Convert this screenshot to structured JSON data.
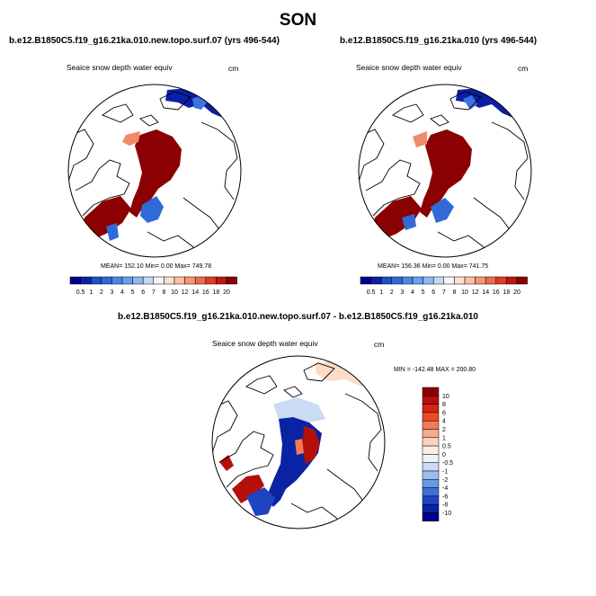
{
  "page": {
    "season": "SON"
  },
  "panels": {
    "left": {
      "title": "b.e12.B1850C5.f19_g16.21ka.010.new.topo.surf.07 (yrs 496-544)",
      "variable": "Seaice snow depth water equiv",
      "units": "cm",
      "stats": "MEAN= 152.10  Min=   0.00  Max= 749.78"
    },
    "right": {
      "title": "b.e12.B1850C5.f19_g16.21ka.010 (yrs 496-544)",
      "variable": "Seaice snow depth water equiv",
      "units": "cm",
      "stats": "MEAN= 156.36  Min=   0.00  Max= 741.75"
    },
    "diff": {
      "title": "b.e12.B1850C5.f19_g16.21ka.010.new.topo.surf.07 - b.e12.B1850C5.f19_g16.21ka.010",
      "variable": "Seaice snow depth water equiv",
      "units": "cm",
      "minmax": "MIN = -142.48  MAX = 200.80"
    }
  },
  "colorbars": {
    "absolute": {
      "labels": [
        "0.5",
        "1",
        "2",
        "3",
        "4",
        "5",
        "6",
        "7",
        "8",
        "10",
        "12",
        "14",
        "16",
        "18",
        "20"
      ],
      "colors": [
        "#00008f",
        "#0a1fa8",
        "#1f4fc6",
        "#2f68d8",
        "#4a86e8",
        "#6a9eee",
        "#8fb8f3",
        "#c4d8f7",
        "#f5f5f5",
        "#fde0cf",
        "#fbbfa3",
        "#f79473",
        "#ef6a4a",
        "#df3a26",
        "#c01510",
        "#8b0000"
      ]
    },
    "difference": {
      "labels": [
        "10",
        "8",
        "6",
        "4",
        "2",
        "1",
        "0.5",
        "0",
        "-0.5",
        "-1",
        "-2",
        "-4",
        "-6",
        "-8",
        "-10"
      ],
      "colors": [
        "#8b0000",
        "#b50f0a",
        "#d9230f",
        "#ee4a2a",
        "#f47a55",
        "#f9a88a",
        "#fcd2bd",
        "#fdeee5",
        "#edf3fb",
        "#c9dbf5",
        "#9dbcef",
        "#6a97e6",
        "#3e6fd9",
        "#1d45c2",
        "#0a22a4",
        "#00008f"
      ]
    }
  },
  "chart_data": [
    {
      "type": "heatmap",
      "title": "b.e12.B1850C5.f19_g16.21ka.010.new.topo.surf.07 (yrs 496-544)",
      "variable": "Seaice snow depth water equiv",
      "units": "cm",
      "projection": "north polar stereographic",
      "mean": 152.1,
      "min": 0.0,
      "max": 749.78,
      "levels": [
        0.5,
        1,
        2,
        3,
        4,
        5,
        6,
        7,
        8,
        10,
        12,
        14,
        16,
        18,
        20
      ]
    },
    {
      "type": "heatmap",
      "title": "b.e12.B1850C5.f19_g16.21ka.010 (yrs 496-544)",
      "variable": "Seaice snow depth water equiv",
      "units": "cm",
      "projection": "north polar stereographic",
      "mean": 156.36,
      "min": 0.0,
      "max": 741.75,
      "levels": [
        0.5,
        1,
        2,
        3,
        4,
        5,
        6,
        7,
        8,
        10,
        12,
        14,
        16,
        18,
        20
      ]
    },
    {
      "type": "heatmap",
      "title": "b.e12.B1850C5.f19_g16.21ka.010.new.topo.surf.07 - b.e12.B1850C5.f19_g16.21ka.010",
      "variable": "Seaice snow depth water equiv",
      "units": "cm",
      "projection": "north polar stereographic",
      "min": -142.48,
      "max": 200.8,
      "levels": [
        -10,
        -8,
        -6,
        -4,
        -2,
        -1,
        -0.5,
        0,
        0.5,
        1,
        2,
        4,
        6,
        8,
        10
      ]
    }
  ]
}
